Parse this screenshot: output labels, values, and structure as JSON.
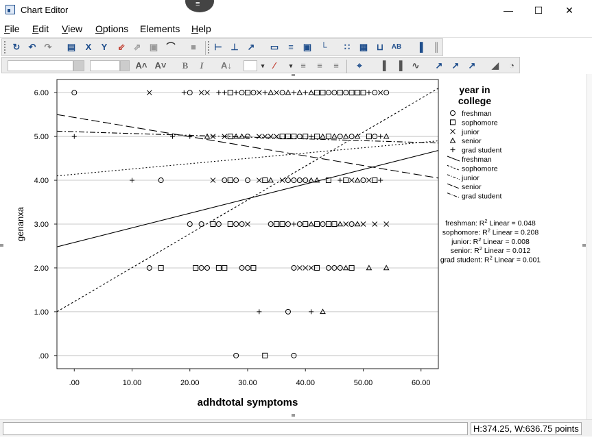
{
  "window": {
    "title": "Chart Editor",
    "minimize_label": "—",
    "maximize_label": "☐",
    "close_label": "✕",
    "drag_handle_label": "≡"
  },
  "menu": {
    "items": [
      {
        "key": "F",
        "rest": "ile"
      },
      {
        "key": "E",
        "rest": "dit"
      },
      {
        "key": "V",
        "rest": "iew"
      },
      {
        "key": "O",
        "rest": "ptions"
      },
      {
        "key": "",
        "rest": "Elements"
      },
      {
        "key": "H",
        "rest": "elp"
      }
    ]
  },
  "toolbar": {
    "font_bold": "B",
    "font_italic": "I",
    "icons1": [
      "refresh-icon",
      "undo-icon",
      "redo-icon",
      "properties-icon",
      "x-axis-icon",
      "y-axis-icon",
      "rescale-icon",
      "transpose-icon",
      "lasso-icon",
      "dropline-icon",
      "chart-layout-icon",
      "x-axis-line-icon",
      "y-axis-line-icon",
      "reference-line-icon",
      "fit-line-icon",
      "title-icon",
      "footnote-icon",
      "text-box-icon",
      "legend-icon",
      "grid-icon",
      "grid-fill-icon",
      "data-labels-icon",
      "annotation-icon",
      "bar-orient-icon",
      "bar-horiz-icon"
    ],
    "icons2": [
      "increase-font-icon",
      "decrease-font-icon",
      "bold-icon",
      "italic-icon",
      "text-style-icon",
      "color-box-icon",
      "line-style-icon",
      "align-left-icon",
      "align-center-icon",
      "align-right-icon",
      "crosshair-icon",
      "bar-chart-icon",
      "bar-chart-2-icon",
      "line-chart-icon",
      "fit-total-icon",
      "fit-subgroup-icon",
      "interpolation-icon",
      "area-chart-icon",
      "pie-chart-icon"
    ],
    "font_size_value": "",
    "font_name_value": ""
  },
  "status": {
    "field_text": "",
    "size_text": "H:374.25, W:636.75 points"
  },
  "chart_data": {
    "type": "scatter",
    "xlabel": "adhdtotal symptoms",
    "ylabel": "genanxa",
    "xlim": [
      -3,
      63
    ],
    "ylim": [
      -0.3,
      6.3
    ],
    "xticks": [
      ".00",
      "10.00",
      "20.00",
      "30.00",
      "40.00",
      "50.00",
      "60.00"
    ],
    "xtick_values": [
      0,
      10,
      20,
      30,
      40,
      50,
      60
    ],
    "yticks": [
      "6.00",
      "5.00",
      "4.00",
      "3.00",
      "2.00",
      "1.00",
      ".00"
    ],
    "ytick_values": [
      6,
      5,
      4,
      3,
      2,
      1,
      0
    ],
    "grid": "horizontal",
    "legend": {
      "title": "year in college",
      "placement": "right",
      "markers": [
        {
          "name": "freshman",
          "marker": "circle"
        },
        {
          "name": "sophomore",
          "marker": "square"
        },
        {
          "name": "junior",
          "marker": "x"
        },
        {
          "name": "senior",
          "marker": "triangle"
        },
        {
          "name": "grad student",
          "marker": "plus"
        }
      ],
      "lines": [
        {
          "name": "freshman",
          "style": "solid"
        },
        {
          "name": "sophomore",
          "style": "dot-dash"
        },
        {
          "name": "junior",
          "style": "dash-dot"
        },
        {
          "name": "senior",
          "style": "long-dash"
        },
        {
          "name": "grad student",
          "style": "dash-dot-dot"
        }
      ]
    },
    "r2_annotations": [
      {
        "group": "freshman",
        "prefix": "freshman: R",
        "suffix": " Linear = 0.048"
      },
      {
        "group": "sophomore",
        "prefix": "sophomore: R",
        "suffix": " Linear = 0.208"
      },
      {
        "group": "junior",
        "prefix": "junior: R",
        "suffix": " Linear = 0.008"
      },
      {
        "group": "senior",
        "prefix": "senior: R",
        "suffix": " Linear = 0.012"
      },
      {
        "group": "grad student",
        "prefix": "grad student: R",
        "suffix": " Linear = 0.001"
      }
    ],
    "fit_lines": [
      {
        "group": "freshman",
        "dash": "",
        "x": [
          -3,
          63
        ],
        "y": [
          2.48,
          4.68
        ]
      },
      {
        "group": "sophomore",
        "dash": "3,3",
        "x": [
          -3,
          63
        ],
        "y": [
          1.0,
          6.1
        ]
      },
      {
        "group": "junior",
        "dash": "2,3",
        "x": [
          -3,
          63
        ],
        "y": [
          4.1,
          4.9
        ]
      },
      {
        "group": "senior",
        "dash": "12,5",
        "x": [
          -3,
          63
        ],
        "y": [
          5.5,
          4.05
        ]
      },
      {
        "group": "grad student",
        "dash": "8,3,2,3",
        "x": [
          -3,
          63
        ],
        "y": [
          5.12,
          4.85
        ]
      }
    ],
    "points": [
      {
        "x": 0,
        "y": 6,
        "m": "circle"
      },
      {
        "x": 13,
        "y": 6,
        "m": "x"
      },
      {
        "x": 19,
        "y": 6,
        "m": "plus"
      },
      {
        "x": 20,
        "y": 6,
        "m": "circle"
      },
      {
        "x": 22,
        "y": 6,
        "m": "x"
      },
      {
        "x": 23,
        "y": 6,
        "m": "x"
      },
      {
        "x": 25,
        "y": 6,
        "m": "plus"
      },
      {
        "x": 26,
        "y": 6,
        "m": "plus"
      },
      {
        "x": 27,
        "y": 6,
        "m": "square"
      },
      {
        "x": 28,
        "y": 6,
        "m": "plus"
      },
      {
        "x": 29,
        "y": 6,
        "m": "circle"
      },
      {
        "x": 30,
        "y": 6,
        "m": "square"
      },
      {
        "x": 31,
        "y": 6,
        "m": "circle"
      },
      {
        "x": 32,
        "y": 6,
        "m": "x"
      },
      {
        "x": 33,
        "y": 6,
        "m": "plus"
      },
      {
        "x": 34,
        "y": 6,
        "m": "triangle"
      },
      {
        "x": 35,
        "y": 6,
        "m": "x"
      },
      {
        "x": 36,
        "y": 6,
        "m": "circle"
      },
      {
        "x": 37,
        "y": 6,
        "m": "triangle"
      },
      {
        "x": 38,
        "y": 6,
        "m": "plus"
      },
      {
        "x": 39,
        "y": 6,
        "m": "triangle"
      },
      {
        "x": 40,
        "y": 6,
        "m": "plus"
      },
      {
        "x": 41,
        "y": 6,
        "m": "triangle"
      },
      {
        "x": 42,
        "y": 6,
        "m": "square"
      },
      {
        "x": 43,
        "y": 6,
        "m": "square"
      },
      {
        "x": 44,
        "y": 6,
        "m": "circle"
      },
      {
        "x": 45,
        "y": 6,
        "m": "circle"
      },
      {
        "x": 46,
        "y": 6,
        "m": "square"
      },
      {
        "x": 47,
        "y": 6,
        "m": "circle"
      },
      {
        "x": 48,
        "y": 6,
        "m": "square"
      },
      {
        "x": 49,
        "y": 6,
        "m": "square"
      },
      {
        "x": 50,
        "y": 6,
        "m": "square"
      },
      {
        "x": 51,
        "y": 6,
        "m": "plus"
      },
      {
        "x": 52,
        "y": 6,
        "m": "circle"
      },
      {
        "x": 53,
        "y": 6,
        "m": "x"
      },
      {
        "x": 54,
        "y": 6,
        "m": "circle"
      },
      {
        "x": 0,
        "y": 5,
        "m": "plus"
      },
      {
        "x": 17,
        "y": 5,
        "m": "plus"
      },
      {
        "x": 20,
        "y": 5,
        "m": "plus"
      },
      {
        "x": 23,
        "y": 5,
        "m": "triangle"
      },
      {
        "x": 24,
        "y": 5,
        "m": "x"
      },
      {
        "x": 26,
        "y": 5,
        "m": "x"
      },
      {
        "x": 27,
        "y": 5,
        "m": "square"
      },
      {
        "x": 28,
        "y": 5,
        "m": "triangle"
      },
      {
        "x": 29,
        "y": 5,
        "m": "triangle"
      },
      {
        "x": 30,
        "y": 5,
        "m": "circle"
      },
      {
        "x": 32,
        "y": 5,
        "m": "x"
      },
      {
        "x": 33,
        "y": 5,
        "m": "x"
      },
      {
        "x": 34,
        "y": 5,
        "m": "x"
      },
      {
        "x": 35,
        "y": 5,
        "m": "x"
      },
      {
        "x": 36,
        "y": 5,
        "m": "square"
      },
      {
        "x": 37,
        "y": 5,
        "m": "square"
      },
      {
        "x": 38,
        "y": 5,
        "m": "square"
      },
      {
        "x": 39,
        "y": 5,
        "m": "circle"
      },
      {
        "x": 40,
        "y": 5,
        "m": "square"
      },
      {
        "x": 41,
        "y": 5,
        "m": "plus"
      },
      {
        "x": 42,
        "y": 5,
        "m": "square"
      },
      {
        "x": 43,
        "y": 5,
        "m": "triangle"
      },
      {
        "x": 44,
        "y": 5,
        "m": "square"
      },
      {
        "x": 45,
        "y": 5,
        "m": "triangle"
      },
      {
        "x": 46,
        "y": 5,
        "m": "circle"
      },
      {
        "x": 47,
        "y": 5,
        "m": "triangle"
      },
      {
        "x": 48,
        "y": 5,
        "m": "circle"
      },
      {
        "x": 49,
        "y": 5,
        "m": "triangle"
      },
      {
        "x": 51,
        "y": 5,
        "m": "square"
      },
      {
        "x": 52,
        "y": 5,
        "m": "circle"
      },
      {
        "x": 53,
        "y": 5,
        "m": "plus"
      },
      {
        "x": 54,
        "y": 5,
        "m": "triangle"
      },
      {
        "x": 10,
        "y": 4,
        "m": "plus"
      },
      {
        "x": 15,
        "y": 4,
        "m": "circle"
      },
      {
        "x": 24,
        "y": 4,
        "m": "x"
      },
      {
        "x": 26,
        "y": 4,
        "m": "circle"
      },
      {
        "x": 27,
        "y": 4,
        "m": "square"
      },
      {
        "x": 28,
        "y": 4,
        "m": "circle"
      },
      {
        "x": 30,
        "y": 4,
        "m": "circle"
      },
      {
        "x": 32,
        "y": 4,
        "m": "x"
      },
      {
        "x": 33,
        "y": 4,
        "m": "square"
      },
      {
        "x": 34,
        "y": 4,
        "m": "triangle"
      },
      {
        "x": 36,
        "y": 4,
        "m": "x"
      },
      {
        "x": 37,
        "y": 4,
        "m": "circle"
      },
      {
        "x": 38,
        "y": 4,
        "m": "circle"
      },
      {
        "x": 39,
        "y": 4,
        "m": "circle"
      },
      {
        "x": 40,
        "y": 4,
        "m": "circle"
      },
      {
        "x": 41,
        "y": 4,
        "m": "triangle"
      },
      {
        "x": 42,
        "y": 4,
        "m": "triangle"
      },
      {
        "x": 44,
        "y": 4,
        "m": "square"
      },
      {
        "x": 46,
        "y": 4,
        "m": "plus"
      },
      {
        "x": 47,
        "y": 4,
        "m": "square"
      },
      {
        "x": 48,
        "y": 4,
        "m": "x"
      },
      {
        "x": 49,
        "y": 4,
        "m": "triangle"
      },
      {
        "x": 50,
        "y": 4,
        "m": "circle"
      },
      {
        "x": 51,
        "y": 4,
        "m": "x"
      },
      {
        "x": 52,
        "y": 4,
        "m": "square"
      },
      {
        "x": 53,
        "y": 4,
        "m": "plus"
      },
      {
        "x": 20,
        "y": 3,
        "m": "circle"
      },
      {
        "x": 22,
        "y": 3,
        "m": "circle"
      },
      {
        "x": 24,
        "y": 3,
        "m": "square"
      },
      {
        "x": 25,
        "y": 3,
        "m": "circle"
      },
      {
        "x": 27,
        "y": 3,
        "m": "square"
      },
      {
        "x": 28,
        "y": 3,
        "m": "circle"
      },
      {
        "x": 29,
        "y": 3,
        "m": "circle"
      },
      {
        "x": 30,
        "y": 3,
        "m": "x"
      },
      {
        "x": 34,
        "y": 3,
        "m": "circle"
      },
      {
        "x": 35,
        "y": 3,
        "m": "square"
      },
      {
        "x": 36,
        "y": 3,
        "m": "square"
      },
      {
        "x": 37,
        "y": 3,
        "m": "circle"
      },
      {
        "x": 38,
        "y": 3,
        "m": "plus"
      },
      {
        "x": 39,
        "y": 3,
        "m": "circle"
      },
      {
        "x": 40,
        "y": 3,
        "m": "square"
      },
      {
        "x": 41,
        "y": 3,
        "m": "triangle"
      },
      {
        "x": 42,
        "y": 3,
        "m": "square"
      },
      {
        "x": 43,
        "y": 3,
        "m": "circle"
      },
      {
        "x": 44,
        "y": 3,
        "m": "square"
      },
      {
        "x": 45,
        "y": 3,
        "m": "square"
      },
      {
        "x": 46,
        "y": 3,
        "m": "triangle"
      },
      {
        "x": 47,
        "y": 3,
        "m": "x"
      },
      {
        "x": 48,
        "y": 3,
        "m": "circle"
      },
      {
        "x": 49,
        "y": 3,
        "m": "triangle"
      },
      {
        "x": 50,
        "y": 3,
        "m": "x"
      },
      {
        "x": 52,
        "y": 3,
        "m": "x"
      },
      {
        "x": 54,
        "y": 3,
        "m": "x"
      },
      {
        "x": 13,
        "y": 2,
        "m": "circle"
      },
      {
        "x": 15,
        "y": 2,
        "m": "square"
      },
      {
        "x": 21,
        "y": 2,
        "m": "square"
      },
      {
        "x": 22,
        "y": 2,
        "m": "circle"
      },
      {
        "x": 23,
        "y": 2,
        "m": "circle"
      },
      {
        "x": 25,
        "y": 2,
        "m": "square"
      },
      {
        "x": 26,
        "y": 2,
        "m": "square"
      },
      {
        "x": 29,
        "y": 2,
        "m": "circle"
      },
      {
        "x": 30,
        "y": 2,
        "m": "circle"
      },
      {
        "x": 31,
        "y": 2,
        "m": "square"
      },
      {
        "x": 38,
        "y": 2,
        "m": "circle"
      },
      {
        "x": 39,
        "y": 2,
        "m": "x"
      },
      {
        "x": 40,
        "y": 2,
        "m": "x"
      },
      {
        "x": 41,
        "y": 2,
        "m": "x"
      },
      {
        "x": 42,
        "y": 2,
        "m": "square"
      },
      {
        "x": 44,
        "y": 2,
        "m": "circle"
      },
      {
        "x": 45,
        "y": 2,
        "m": "circle"
      },
      {
        "x": 46,
        "y": 2,
        "m": "circle"
      },
      {
        "x": 47,
        "y": 2,
        "m": "triangle"
      },
      {
        "x": 48,
        "y": 2,
        "m": "square"
      },
      {
        "x": 51,
        "y": 2,
        "m": "triangle"
      },
      {
        "x": 54,
        "y": 2,
        "m": "triangle"
      },
      {
        "x": 32,
        "y": 1,
        "m": "plus"
      },
      {
        "x": 37,
        "y": 1,
        "m": "circle"
      },
      {
        "x": 41,
        "y": 1,
        "m": "plus"
      },
      {
        "x": 43,
        "y": 1,
        "m": "triangle"
      },
      {
        "x": 28,
        "y": 0,
        "m": "circle"
      },
      {
        "x": 33,
        "y": 0,
        "m": "square"
      },
      {
        "x": 38,
        "y": 0,
        "m": "circle"
      }
    ]
  }
}
